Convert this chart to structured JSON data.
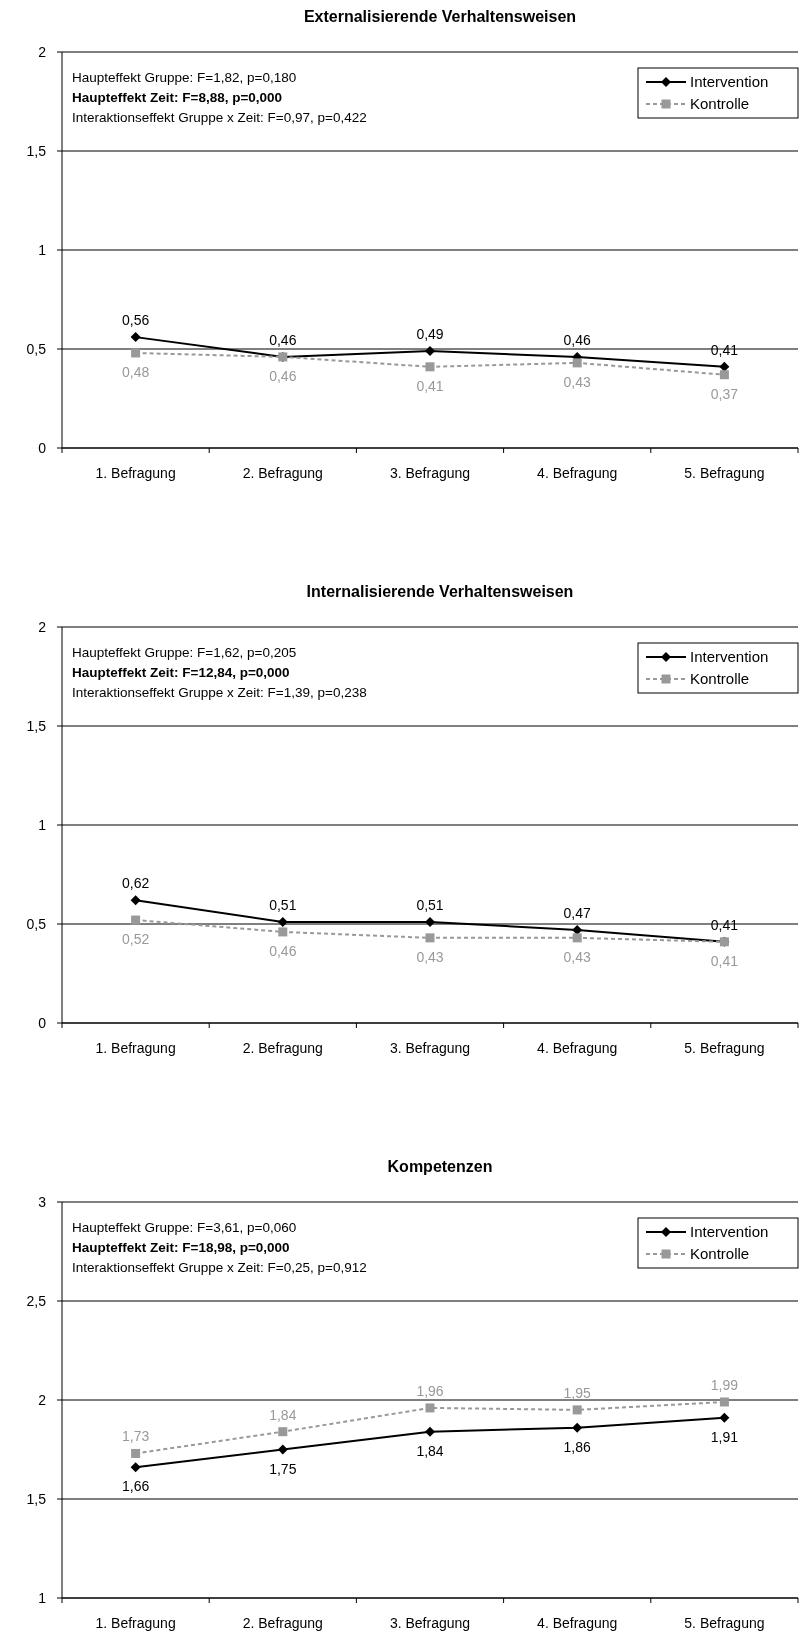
{
  "chart_data": [
    {
      "type": "line",
      "title": "Externalisierende Verhaltensweisen",
      "categories": [
        "1. Befragung",
        "2. Befragung",
        "3. Befragung",
        "4. Befragung",
        "5. Befragung"
      ],
      "series": [
        {
          "name": "Intervention",
          "color": "#000000",
          "marker": "diamond",
          "line_style": "solid",
          "values": [
            0.56,
            0.46,
            0.49,
            0.46,
            0.41
          ],
          "value_labels": [
            "0,56",
            "0,46",
            "0,49",
            "0,46",
            "0,41"
          ]
        },
        {
          "name": "Kontrolle",
          "color": "#999999",
          "marker": "square",
          "line_style": "dashed",
          "values": [
            0.48,
            0.46,
            0.41,
            0.43,
            0.37
          ],
          "value_labels": [
            "0,48",
            "0,46",
            "0,41",
            "0,43",
            "0,37"
          ]
        }
      ],
      "ylim": [
        0,
        2
      ],
      "yticks": [
        0,
        {
          "value": 0.5,
          "label": "0,5"
        },
        1,
        {
          "value": 1.5,
          "label": "1,5"
        },
        2
      ],
      "grid": "y",
      "legend": "top right",
      "annotations": [
        "Haupteffekt Gruppe: F=1,82, p=0,180",
        "Haupteffekt Zeit: F=8,88, p=0,000",
        "Interaktionseffekt Gruppe x Zeit: F=0,97, p=0,422"
      ]
    },
    {
      "type": "line",
      "title": "Internalisierende Verhaltensweisen",
      "categories": [
        "1. Befragung",
        "2. Befragung",
        "3. Befragung",
        "4. Befragung",
        "5. Befragung"
      ],
      "series": [
        {
          "name": "Intervention",
          "color": "#000000",
          "marker": "diamond",
          "line_style": "solid",
          "values": [
            0.62,
            0.51,
            0.51,
            0.47,
            0.41
          ],
          "value_labels": [
            "0,62",
            "0,51",
            "0,51",
            "0,47",
            "0,41"
          ]
        },
        {
          "name": "Kontrolle",
          "color": "#999999",
          "marker": "square",
          "line_style": "dashed",
          "values": [
            0.52,
            0.46,
            0.43,
            0.43,
            0.41
          ],
          "value_labels": [
            "0,52",
            "0,46",
            "0,43",
            "0,43",
            "0,41"
          ]
        }
      ],
      "ylim": [
        0,
        2
      ],
      "yticks": [
        0,
        {
          "value": 0.5,
          "label": "0,5"
        },
        1,
        {
          "value": 1.5,
          "label": "1,5"
        },
        2
      ],
      "grid": "y",
      "legend": "top right",
      "annotations": [
        "Haupteffekt Gruppe: F=1,62, p=0,205",
        "Haupteffekt Zeit: F=12,84, p=0,000",
        "Interaktionseffekt Gruppe x Zeit: F=1,39, p=0,238"
      ]
    },
    {
      "type": "line",
      "title": "Kompetenzen",
      "categories": [
        "1. Befragung",
        "2. Befragung",
        "3. Befragung",
        "4. Befragung",
        "5. Befragung"
      ],
      "series": [
        {
          "name": "Intervention",
          "color": "#000000",
          "marker": "diamond",
          "line_style": "solid",
          "values": [
            1.66,
            1.75,
            1.84,
            1.86,
            1.91
          ],
          "value_labels": [
            "1,66",
            "1,75",
            "1,84",
            "1,86",
            "1,91"
          ]
        },
        {
          "name": "Kontrolle",
          "color": "#999999",
          "marker": "square",
          "line_style": "dashed",
          "values": [
            1.73,
            1.84,
            1.96,
            1.95,
            1.99
          ],
          "value_labels": [
            "1,73",
            "1,84",
            "1,96",
            "1,95",
            "1,99"
          ]
        }
      ],
      "ylim": [
        1,
        3
      ],
      "yticks": [
        1,
        {
          "value": 1.5,
          "label": "1,5"
        },
        2,
        {
          "value": 2.5,
          "label": "2,5"
        },
        3
      ],
      "grid": "y",
      "legend": "top right",
      "annotations": [
        "Haupteffekt Gruppe: F=3,61, p=0,060",
        "Haupteffekt Zeit: F=18,98, p=0,000",
        "Interaktionseffekt Gruppe x Zeit: F=0,25, p=0,912"
      ]
    }
  ]
}
